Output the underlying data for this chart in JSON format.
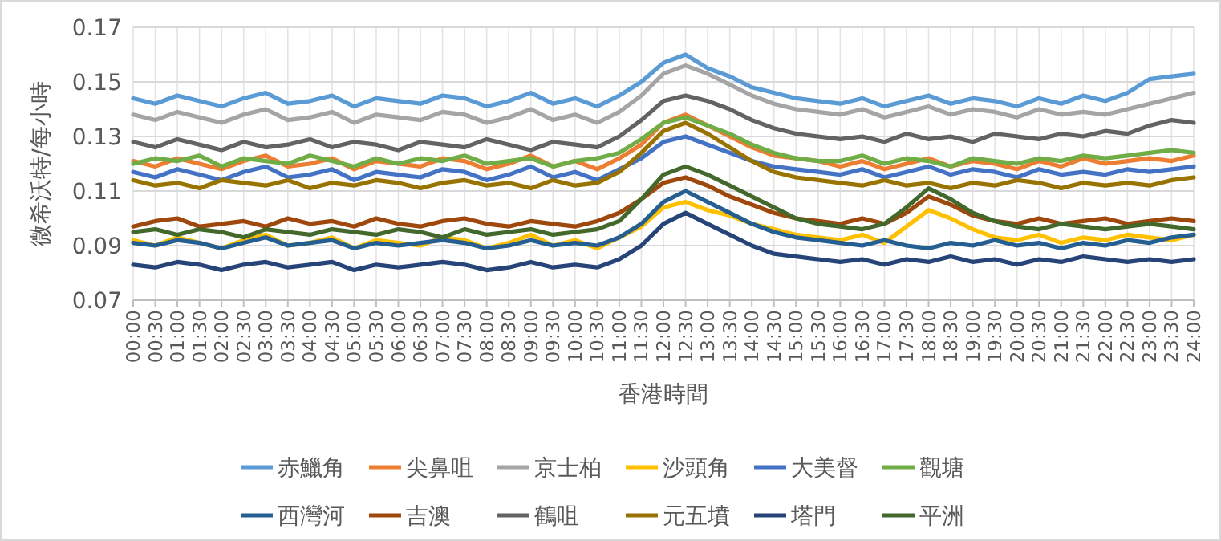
{
  "chart_data": {
    "type": "line",
    "xlabel": "香港時間",
    "ylabel": "微希沃特/每小時",
    "x": [
      0,
      0.5,
      1,
      1.5,
      2,
      2.5,
      3,
      3.5,
      4,
      4.5,
      5,
      5.5,
      6,
      6.5,
      7,
      7.5,
      8,
      8.5,
      9,
      9.5,
      10,
      10.5,
      11,
      11.5,
      12,
      12.5,
      13,
      13.5,
      14,
      14.5,
      15,
      15.5,
      16,
      16.5,
      17,
      17.5,
      18,
      18.5,
      19,
      19.5,
      20,
      20.5,
      21,
      21.5,
      22,
      22.5,
      23,
      23.5,
      24
    ],
    "xlim": [
      0,
      24
    ],
    "xticks": [
      {
        "value": 0,
        "label": "00:00"
      },
      {
        "value": 0.5,
        "label": "00:30"
      },
      {
        "value": 1,
        "label": "01:00"
      },
      {
        "value": 1.5,
        "label": "01:30"
      },
      {
        "value": 2,
        "label": "02:00"
      },
      {
        "value": 2.5,
        "label": "02:30"
      },
      {
        "value": 3,
        "label": "03:00"
      },
      {
        "value": 3.5,
        "label": "03:30"
      },
      {
        "value": 4,
        "label": "04:00"
      },
      {
        "value": 4.5,
        "label": "04:30"
      },
      {
        "value": 5,
        "label": "05:00"
      },
      {
        "value": 5.5,
        "label": "05:30"
      },
      {
        "value": 6,
        "label": "06:00"
      },
      {
        "value": 6.5,
        "label": "06:30"
      },
      {
        "value": 7,
        "label": "07:00"
      },
      {
        "value": 7.5,
        "label": "07:30"
      },
      {
        "value": 8,
        "label": "08:00"
      },
      {
        "value": 8.5,
        "label": "08:30"
      },
      {
        "value": 9,
        "label": "09:00"
      },
      {
        "value": 9.5,
        "label": "09:30"
      },
      {
        "value": 10,
        "label": "10:00"
      },
      {
        "value": 10.5,
        "label": "10:30"
      },
      {
        "value": 11,
        "label": "11:00"
      },
      {
        "value": 11.5,
        "label": "11:30"
      },
      {
        "value": 12,
        "label": "12:00"
      },
      {
        "value": 12.5,
        "label": "12:30"
      },
      {
        "value": 13,
        "label": "13:00"
      },
      {
        "value": 13.5,
        "label": "13:30"
      },
      {
        "value": 14,
        "label": "14:00"
      },
      {
        "value": 14.5,
        "label": "14:30"
      },
      {
        "value": 15,
        "label": "15:00"
      },
      {
        "value": 15.5,
        "label": "15:30"
      },
      {
        "value": 16,
        "label": "16:00"
      },
      {
        "value": 16.5,
        "label": "16:30"
      },
      {
        "value": 17,
        "label": "17:00"
      },
      {
        "value": 17.5,
        "label": "17:30"
      },
      {
        "value": 18,
        "label": "18:00"
      },
      {
        "value": 18.5,
        "label": "18:30"
      },
      {
        "value": 19,
        "label": "19:00"
      },
      {
        "value": 19.5,
        "label": "19:30"
      },
      {
        "value": 20,
        "label": "20:00"
      },
      {
        "value": 20.5,
        "label": "20:30"
      },
      {
        "value": 21,
        "label": "21:00"
      },
      {
        "value": 21.5,
        "label": "21:30"
      },
      {
        "value": 22,
        "label": "22:00"
      },
      {
        "value": 22.5,
        "label": "22:30"
      },
      {
        "value": 23,
        "label": "23:00"
      },
      {
        "value": 23.5,
        "label": "23:30"
      },
      {
        "value": 24,
        "label": "24:00"
      }
    ],
    "ylim": [
      0.07,
      0.17
    ],
    "yticks": [
      0.07,
      0.09,
      0.11,
      0.13,
      0.15,
      0.17
    ],
    "grid": true,
    "legend": "bottom",
    "marker": "none",
    "line_style": "solid",
    "series": [
      {
        "name": "赤鱲角",
        "color": "#5b9bd5",
        "values": [
          0.144,
          0.142,
          0.145,
          0.143,
          0.141,
          0.144,
          0.146,
          0.142,
          0.143,
          0.145,
          0.141,
          0.144,
          0.143,
          0.142,
          0.145,
          0.144,
          0.141,
          0.143,
          0.146,
          0.142,
          0.144,
          0.141,
          0.145,
          0.15,
          0.157,
          0.16,
          0.155,
          0.152,
          0.148,
          0.146,
          0.144,
          0.143,
          0.142,
          0.144,
          0.141,
          0.143,
          0.145,
          0.142,
          0.144,
          0.143,
          0.141,
          0.144,
          0.142,
          0.145,
          0.143,
          0.146,
          0.151,
          0.152,
          0.153
        ]
      },
      {
        "name": "尖鼻咀",
        "color": "#ed7d31",
        "values": [
          0.121,
          0.119,
          0.122,
          0.12,
          0.118,
          0.121,
          0.123,
          0.119,
          0.12,
          0.122,
          0.118,
          0.121,
          0.12,
          0.119,
          0.122,
          0.121,
          0.118,
          0.12,
          0.123,
          0.119,
          0.121,
          0.118,
          0.122,
          0.127,
          0.135,
          0.138,
          0.134,
          0.13,
          0.126,
          0.123,
          0.122,
          0.121,
          0.119,
          0.121,
          0.118,
          0.12,
          0.122,
          0.119,
          0.121,
          0.12,
          0.118,
          0.121,
          0.119,
          0.122,
          0.12,
          0.121,
          0.122,
          0.121,
          0.123
        ]
      },
      {
        "name": "京士柏",
        "color": "#a5a5a5",
        "values": [
          0.138,
          0.136,
          0.139,
          0.137,
          0.135,
          0.138,
          0.14,
          0.136,
          0.137,
          0.139,
          0.135,
          0.138,
          0.137,
          0.136,
          0.139,
          0.138,
          0.135,
          0.137,
          0.14,
          0.136,
          0.138,
          0.135,
          0.139,
          0.145,
          0.153,
          0.156,
          0.153,
          0.149,
          0.145,
          0.142,
          0.14,
          0.139,
          0.138,
          0.14,
          0.137,
          0.139,
          0.141,
          0.138,
          0.14,
          0.139,
          0.137,
          0.14,
          0.138,
          0.139,
          0.138,
          0.14,
          0.142,
          0.144,
          0.146
        ]
      },
      {
        "name": "沙頭角",
        "color": "#ffc000",
        "values": [
          0.092,
          0.09,
          0.093,
          0.091,
          0.089,
          0.092,
          0.094,
          0.09,
          0.091,
          0.093,
          0.089,
          0.092,
          0.091,
          0.09,
          0.093,
          0.092,
          0.089,
          0.091,
          0.094,
          0.09,
          0.092,
          0.089,
          0.093,
          0.097,
          0.104,
          0.106,
          0.103,
          0.101,
          0.098,
          0.096,
          0.094,
          0.093,
          0.092,
          0.094,
          0.091,
          0.097,
          0.103,
          0.1,
          0.096,
          0.093,
          0.092,
          0.094,
          0.091,
          0.093,
          0.092,
          0.094,
          0.093,
          0.092,
          0.094
        ]
      },
      {
        "name": "大美督",
        "color": "#4472c4",
        "values": [
          0.117,
          0.115,
          0.118,
          0.116,
          0.114,
          0.117,
          0.119,
          0.115,
          0.116,
          0.118,
          0.114,
          0.117,
          0.116,
          0.115,
          0.118,
          0.117,
          0.114,
          0.116,
          0.119,
          0.115,
          0.117,
          0.114,
          0.118,
          0.122,
          0.128,
          0.13,
          0.127,
          0.124,
          0.121,
          0.119,
          0.118,
          0.117,
          0.116,
          0.118,
          0.115,
          0.117,
          0.119,
          0.116,
          0.118,
          0.117,
          0.115,
          0.118,
          0.116,
          0.117,
          0.116,
          0.118,
          0.117,
          0.118,
          0.119
        ]
      },
      {
        "name": "觀塘",
        "color": "#70ad47",
        "values": [
          0.12,
          0.122,
          0.121,
          0.123,
          0.119,
          0.122,
          0.121,
          0.12,
          0.123,
          0.121,
          0.119,
          0.122,
          0.12,
          0.122,
          0.121,
          0.123,
          0.12,
          0.121,
          0.122,
          0.119,
          0.121,
          0.122,
          0.124,
          0.129,
          0.135,
          0.137,
          0.134,
          0.131,
          0.127,
          0.124,
          0.122,
          0.121,
          0.121,
          0.123,
          0.12,
          0.122,
          0.121,
          0.119,
          0.122,
          0.121,
          0.12,
          0.122,
          0.121,
          0.123,
          0.122,
          0.123,
          0.124,
          0.125,
          0.124
        ]
      },
      {
        "name": "西灣河",
        "color": "#255e91",
        "values": [
          0.091,
          0.09,
          0.092,
          0.091,
          0.089,
          0.091,
          0.093,
          0.09,
          0.091,
          0.092,
          0.089,
          0.091,
          0.09,
          0.091,
          0.092,
          0.091,
          0.089,
          0.09,
          0.092,
          0.09,
          0.091,
          0.09,
          0.093,
          0.098,
          0.106,
          0.11,
          0.106,
          0.102,
          0.098,
          0.095,
          0.093,
          0.092,
          0.091,
          0.09,
          0.092,
          0.09,
          0.089,
          0.091,
          0.09,
          0.092,
          0.09,
          0.091,
          0.089,
          0.091,
          0.09,
          0.092,
          0.091,
          0.093,
          0.094
        ]
      },
      {
        "name": "吉澳",
        "color": "#9e480e",
        "values": [
          0.097,
          0.099,
          0.1,
          0.097,
          0.098,
          0.099,
          0.097,
          0.1,
          0.098,
          0.099,
          0.097,
          0.1,
          0.098,
          0.097,
          0.099,
          0.1,
          0.098,
          0.097,
          0.099,
          0.098,
          0.097,
          0.099,
          0.102,
          0.107,
          0.113,
          0.115,
          0.112,
          0.108,
          0.105,
          0.102,
          0.1,
          0.099,
          0.098,
          0.1,
          0.098,
          0.102,
          0.108,
          0.105,
          0.101,
          0.099,
          0.098,
          0.1,
          0.098,
          0.099,
          0.1,
          0.098,
          0.099,
          0.1,
          0.099
        ]
      },
      {
        "name": "鶴咀",
        "color": "#636363",
        "values": [
          0.128,
          0.126,
          0.129,
          0.127,
          0.125,
          0.128,
          0.126,
          0.127,
          0.129,
          0.126,
          0.128,
          0.127,
          0.125,
          0.128,
          0.127,
          0.126,
          0.129,
          0.127,
          0.125,
          0.128,
          0.127,
          0.126,
          0.13,
          0.136,
          0.143,
          0.145,
          0.143,
          0.14,
          0.136,
          0.133,
          0.131,
          0.13,
          0.129,
          0.13,
          0.128,
          0.131,
          0.129,
          0.13,
          0.128,
          0.131,
          0.13,
          0.129,
          0.131,
          0.13,
          0.132,
          0.131,
          0.134,
          0.136,
          0.135
        ]
      },
      {
        "name": "元五墳",
        "color": "#997300",
        "values": [
          0.114,
          0.112,
          0.113,
          0.111,
          0.114,
          0.113,
          0.112,
          0.114,
          0.111,
          0.113,
          0.112,
          0.114,
          0.113,
          0.111,
          0.113,
          0.114,
          0.112,
          0.113,
          0.111,
          0.114,
          0.112,
          0.113,
          0.117,
          0.124,
          0.132,
          0.135,
          0.131,
          0.126,
          0.121,
          0.117,
          0.115,
          0.114,
          0.113,
          0.112,
          0.114,
          0.112,
          0.113,
          0.111,
          0.113,
          0.112,
          0.114,
          0.113,
          0.111,
          0.113,
          0.112,
          0.113,
          0.112,
          0.114,
          0.115
        ]
      },
      {
        "name": "塔門",
        "color": "#264478",
        "values": [
          0.083,
          0.082,
          0.084,
          0.083,
          0.081,
          0.083,
          0.084,
          0.082,
          0.083,
          0.084,
          0.081,
          0.083,
          0.082,
          0.083,
          0.084,
          0.083,
          0.081,
          0.082,
          0.084,
          0.082,
          0.083,
          0.082,
          0.085,
          0.09,
          0.098,
          0.102,
          0.098,
          0.094,
          0.09,
          0.087,
          0.086,
          0.085,
          0.084,
          0.085,
          0.083,
          0.085,
          0.084,
          0.086,
          0.084,
          0.085,
          0.083,
          0.085,
          0.084,
          0.086,
          0.085,
          0.084,
          0.085,
          0.084,
          0.085
        ]
      },
      {
        "name": "平洲",
        "color": "#43682b",
        "values": [
          0.095,
          0.096,
          0.094,
          0.096,
          0.095,
          0.093,
          0.096,
          0.095,
          0.094,
          0.096,
          0.095,
          0.094,
          0.096,
          0.095,
          0.093,
          0.096,
          0.094,
          0.095,
          0.096,
          0.094,
          0.095,
          0.096,
          0.099,
          0.107,
          0.116,
          0.119,
          0.116,
          0.112,
          0.108,
          0.104,
          0.1,
          0.098,
          0.097,
          0.096,
          0.098,
          0.104,
          0.111,
          0.107,
          0.102,
          0.099,
          0.097,
          0.096,
          0.098,
          0.097,
          0.096,
          0.097,
          0.098,
          0.097,
          0.096
        ]
      }
    ]
  }
}
